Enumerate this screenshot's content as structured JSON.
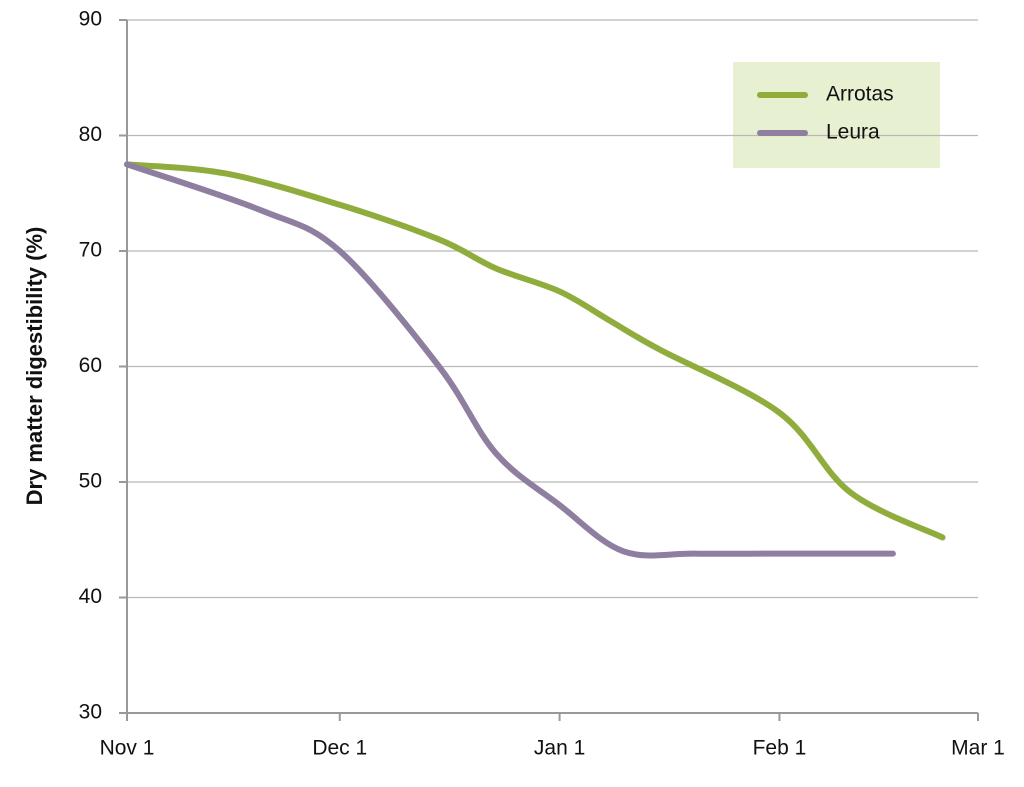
{
  "chart_data": {
    "type": "line",
    "y_label": "Dry matter digestibility (%)",
    "xlim": [
      "Nov 1",
      "Mar 1"
    ],
    "xticks": [
      "Nov 1",
      "Dec 1",
      "Jan 1",
      "Feb 1",
      "Mar 1"
    ],
    "ylim": [
      30,
      90
    ],
    "yticks": [
      30,
      40,
      50,
      60,
      70,
      80,
      90
    ],
    "grid": true,
    "legend": "upper right",
    "series": [
      {
        "name": "Arrotas",
        "color": "#8fac3c",
        "x": [
          "Nov 1",
          "Nov 15",
          "Dec 1",
          "Dec 15",
          "Dec 23",
          "Jan 1",
          "Jan 8",
          "Jan 15",
          "Feb 1",
          "Feb 11",
          "Feb 24"
        ],
        "values": [
          77.5,
          76.7,
          74,
          71,
          68.5,
          66.5,
          64,
          61.5,
          56,
          49.1,
          45.2
        ]
      },
      {
        "name": "Leura",
        "color": "#8e7fa0",
        "x": [
          "Nov 1",
          "Nov 20",
          "Dec 1",
          "Dec 15",
          "Dec 23",
          "Jan 1",
          "Jan 10",
          "Jan 20",
          "Feb 1",
          "Feb 17"
        ],
        "values": [
          77.5,
          73.5,
          70,
          60,
          52.5,
          48,
          44,
          43.8,
          43.8,
          43.8
        ]
      }
    ]
  }
}
